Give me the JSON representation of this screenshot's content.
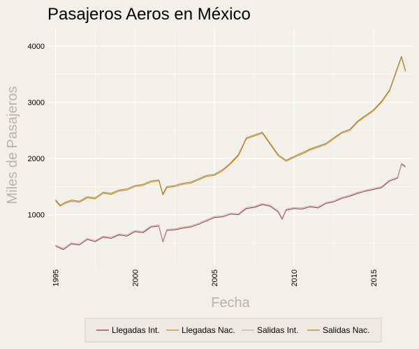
{
  "chart_data": {
    "type": "line",
    "title": "Pasajeros Aeros en México",
    "xlabel": "Fecha",
    "ylabel": "Miles de Pasajeros",
    "xlim": [
      1994.5,
      2017.5
    ],
    "ylim": [
      100,
      4300
    ],
    "x_ticks": [
      1995,
      2000,
      2005,
      2010,
      2015
    ],
    "x_tick_labels": [
      "1995",
      "2000",
      "2005",
      "2010",
      "2015"
    ],
    "y_ticks": [
      1000,
      2000,
      3000,
      4000
    ],
    "y_tick_labels": [
      "1000",
      "2000",
      "3000",
      "4000"
    ],
    "grid": true,
    "legend_position": "bottom",
    "series": [
      {
        "name": "Llegadas Int.",
        "color": "#8b3a3a",
        "x": [
          1995.0,
          1995.5,
          1996.0,
          1996.5,
          1997.0,
          1997.5,
          1998.0,
          1998.5,
          1999.0,
          1999.5,
          2000.0,
          2000.5,
          2001.0,
          2001.5,
          2001.75,
          2002.0,
          2002.5,
          2003.0,
          2003.5,
          2004.0,
          2004.5,
          2005.0,
          2005.5,
          2006.0,
          2006.5,
          2007.0,
          2007.5,
          2008.0,
          2008.5,
          2009.0,
          2009.25,
          2009.5,
          2010.0,
          2010.5,
          2011.0,
          2011.5,
          2012.0,
          2012.5,
          2013.0,
          2013.5,
          2014.0,
          2014.5,
          2015.0,
          2015.5,
          2016.0,
          2016.5,
          2016.75,
          2017.0
        ],
        "y": [
          440,
          380,
          480,
          460,
          560,
          520,
          600,
          580,
          640,
          620,
          700,
          680,
          780,
          800,
          520,
          720,
          730,
          760,
          780,
          830,
          890,
          950,
          960,
          1010,
          1000,
          1110,
          1130,
          1180,
          1150,
          1050,
          920,
          1080,
          1110,
          1100,
          1140,
          1120,
          1200,
          1230,
          1290,
          1330,
          1380,
          1420,
          1450,
          1480,
          1600,
          1650,
          1900,
          1850
        ]
      },
      {
        "name": "Llegadas Nac.",
        "color": "#c8862a",
        "x": [
          1995.0,
          1995.3,
          1995.6,
          1996.0,
          1996.5,
          1997.0,
          1997.5,
          1998.0,
          1998.5,
          1999.0,
          1999.5,
          2000.0,
          2000.5,
          2001.0,
          2001.5,
          2001.75,
          2002.0,
          2002.5,
          2003.0,
          2003.5,
          2004.0,
          2004.5,
          2005.0,
          2005.5,
          2006.0,
          2006.5,
          2007.0,
          2007.5,
          2008.0,
          2008.5,
          2009.0,
          2009.5,
          2010.0,
          2010.5,
          2011.0,
          2011.5,
          2012.0,
          2012.5,
          2013.0,
          2013.5,
          2014.0,
          2014.5,
          2015.0,
          2015.5,
          2016.0,
          2016.5,
          2016.75,
          2017.0
        ],
        "y": [
          1250,
          1150,
          1200,
          1240,
          1220,
          1300,
          1280,
          1380,
          1360,
          1420,
          1440,
          1500,
          1520,
          1580,
          1600,
          1350,
          1480,
          1500,
          1540,
          1560,
          1620,
          1680,
          1700,
          1780,
          1900,
          2050,
          2350,
          2400,
          2450,
          2250,
          2050,
          1950,
          2020,
          2080,
          2150,
          2200,
          2250,
          2350,
          2450,
          2500,
          2650,
          2750,
          2850,
          3000,
          3200,
          3600,
          3800,
          3550
        ]
      },
      {
        "name": "Salidas Int.",
        "color": "#d7a9ad",
        "x": [
          1995.0,
          1995.5,
          1996.0,
          1996.5,
          1997.0,
          1997.5,
          1998.0,
          1998.5,
          1999.0,
          1999.5,
          2000.0,
          2000.5,
          2001.0,
          2001.5,
          2001.75,
          2002.0,
          2002.5,
          2003.0,
          2003.5,
          2004.0,
          2004.5,
          2005.0,
          2005.5,
          2006.0,
          2006.5,
          2007.0,
          2007.5,
          2008.0,
          2008.5,
          2009.0,
          2009.25,
          2009.5,
          2010.0,
          2010.5,
          2011.0,
          2011.5,
          2012.0,
          2012.5,
          2013.0,
          2013.5,
          2014.0,
          2014.5,
          2015.0,
          2015.5,
          2016.0,
          2016.5,
          2016.75,
          2017.0
        ],
        "y": [
          460,
          400,
          500,
          480,
          580,
          540,
          620,
          600,
          660,
          640,
          720,
          700,
          800,
          820,
          540,
          740,
          750,
          780,
          800,
          850,
          910,
          970,
          980,
          1030,
          1020,
          1130,
          1150,
          1200,
          1170,
          1070,
          940,
          1100,
          1130,
          1120,
          1160,
          1140,
          1220,
          1250,
          1310,
          1350,
          1400,
          1440,
          1470,
          1500,
          1620,
          1670,
          1920,
          1870
        ]
      },
      {
        "name": "Salidas Nac.",
        "color": "#a8862a",
        "x": [
          1995.0,
          1995.3,
          1995.6,
          1996.0,
          1996.5,
          1997.0,
          1997.5,
          1998.0,
          1998.5,
          1999.0,
          1999.5,
          2000.0,
          2000.5,
          2001.0,
          2001.5,
          2001.75,
          2002.0,
          2002.5,
          2003.0,
          2003.5,
          2004.0,
          2004.5,
          2005.0,
          2005.5,
          2006.0,
          2006.5,
          2007.0,
          2007.5,
          2008.0,
          2008.5,
          2009.0,
          2009.5,
          2010.0,
          2010.5,
          2011.0,
          2011.5,
          2012.0,
          2012.5,
          2013.0,
          2013.5,
          2014.0,
          2014.5,
          2015.0,
          2015.5,
          2016.0,
          2016.5,
          2016.75,
          2017.0
        ],
        "y": [
          1270,
          1170,
          1220,
          1260,
          1240,
          1320,
          1300,
          1400,
          1380,
          1440,
          1460,
          1520,
          1540,
          1600,
          1620,
          1370,
          1500,
          1520,
          1560,
          1580,
          1640,
          1700,
          1720,
          1800,
          1920,
          2070,
          2370,
          2420,
          2470,
          2270,
          2070,
          1970,
          2040,
          2100,
          2170,
          2220,
          2270,
          2370,
          2470,
          2520,
          2670,
          2770,
          2870,
          3020,
          3220,
          3620,
          3820,
          3570
        ]
      }
    ]
  }
}
